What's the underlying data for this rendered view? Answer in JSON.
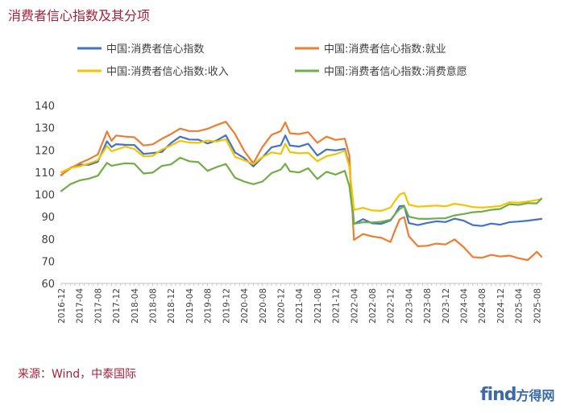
{
  "chart_data": {
    "type": "line",
    "title": "消费者信心指数及其分项",
    "source": "来源：Wind，中泰国际",
    "watermark": {
      "brand": "find",
      "rest": "方得网"
    },
    "ylim": [
      60,
      140
    ],
    "yticks": [
      60,
      70,
      80,
      90,
      100,
      110,
      120,
      130,
      140
    ],
    "grid": false,
    "legend_position": "top",
    "x_start": "2016-12",
    "x_end": "2025-09",
    "x_tick_labels": [
      "2016-12",
      "2017-04",
      "2017-08",
      "2017-12",
      "2018-04",
      "2018-08",
      "2018-12",
      "2019-04",
      "2019-08",
      "2019-12",
      "2020-04",
      "2020-08",
      "2020-12",
      "2021-04",
      "2021-08",
      "2021-12",
      "2022-04",
      "2022-08",
      "2022-12",
      "2023-04",
      "2023-08",
      "2023-12",
      "2024-04",
      "2024-08",
      "2024-12",
      "2025-04",
      "2025-08"
    ],
    "series": [
      {
        "name": "中国:消费者信心指数",
        "color": "#4472C4",
        "points": [
          [
            "2016-12",
            108.6
          ],
          [
            "2017-02",
            112
          ],
          [
            "2017-04",
            113.4
          ],
          [
            "2017-06",
            113.3
          ],
          [
            "2017-08",
            114.7
          ],
          [
            "2017-10",
            123.9
          ],
          [
            "2017-11",
            121.3
          ],
          [
            "2017-12",
            122.6
          ],
          [
            "2018-02",
            122.3
          ],
          [
            "2018-04",
            122.2
          ],
          [
            "2018-06",
            118.2
          ],
          [
            "2018-08",
            118.6
          ],
          [
            "2018-10",
            119.1
          ],
          [
            "2018-12",
            123.1
          ],
          [
            "2019-02",
            126
          ],
          [
            "2019-04",
            124.7
          ],
          [
            "2019-06",
            124.6
          ],
          [
            "2019-08",
            122.9
          ],
          [
            "2019-10",
            124.3
          ],
          [
            "2019-12",
            126.6
          ],
          [
            "2020-02",
            118.9
          ],
          [
            "2020-04",
            116.4
          ],
          [
            "2020-06",
            112.6
          ],
          [
            "2020-08",
            116.7
          ],
          [
            "2020-10",
            121.2
          ],
          [
            "2020-12",
            122.1
          ],
          [
            "2021-01",
            126.5
          ],
          [
            "2021-02",
            122
          ],
          [
            "2021-04",
            121.5
          ],
          [
            "2021-06",
            122.8
          ],
          [
            "2021-08",
            117.5
          ],
          [
            "2021-10",
            120.2
          ],
          [
            "2021-12",
            119.8
          ],
          [
            "2022-02",
            120.5
          ],
          [
            "2022-03",
            113.2
          ],
          [
            "2022-04",
            86.7
          ],
          [
            "2022-06",
            88.9
          ],
          [
            "2022-08",
            87
          ],
          [
            "2022-10",
            86.8
          ],
          [
            "2022-12",
            88.3
          ],
          [
            "2023-01",
            91.2
          ],
          [
            "2023-02",
            94.7
          ],
          [
            "2023-03",
            94.9
          ],
          [
            "2023-04",
            87.1
          ],
          [
            "2023-06",
            86.2
          ],
          [
            "2023-08",
            87.2
          ],
          [
            "2023-10",
            87.9
          ],
          [
            "2023-12",
            87.6
          ],
          [
            "2024-02",
            89.1
          ],
          [
            "2024-04",
            88.2
          ],
          [
            "2024-06",
            86.2
          ],
          [
            "2024-08",
            85.8
          ],
          [
            "2024-10",
            86.9
          ],
          [
            "2024-12",
            86.4
          ],
          [
            "2025-02",
            87.5
          ],
          [
            "2025-04",
            87.8
          ],
          [
            "2025-06",
            88.2
          ],
          [
            "2025-09",
            89
          ]
        ]
      },
      {
        "name": "中国:消费者信心指数:就业",
        "color": "#ED7D31",
        "points": [
          [
            "2016-12",
            108.8
          ],
          [
            "2017-02",
            111.7
          ],
          [
            "2017-04",
            114
          ],
          [
            "2017-06",
            115.8
          ],
          [
            "2017-08",
            118
          ],
          [
            "2017-10",
            128.3
          ],
          [
            "2017-11",
            124.1
          ],
          [
            "2017-12",
            126.5
          ],
          [
            "2018-02",
            126
          ],
          [
            "2018-04",
            125.7
          ],
          [
            "2018-06",
            122
          ],
          [
            "2018-08",
            122.5
          ],
          [
            "2018-10",
            125
          ],
          [
            "2018-12",
            127.1
          ],
          [
            "2019-02",
            129.6
          ],
          [
            "2019-04",
            128.5
          ],
          [
            "2019-06",
            128.5
          ],
          [
            "2019-08",
            129.5
          ],
          [
            "2019-10",
            131.2
          ],
          [
            "2019-12",
            132.7
          ],
          [
            "2020-02",
            127.2
          ],
          [
            "2020-04",
            119.6
          ],
          [
            "2020-06",
            114
          ],
          [
            "2020-08",
            121.4
          ],
          [
            "2020-10",
            126.8
          ],
          [
            "2020-12",
            128.5
          ],
          [
            "2021-01",
            132.4
          ],
          [
            "2021-02",
            127.5
          ],
          [
            "2021-04",
            127.1
          ],
          [
            "2021-06",
            128
          ],
          [
            "2021-08",
            123.2
          ],
          [
            "2021-10",
            126
          ],
          [
            "2021-12",
            124.5
          ],
          [
            "2022-02",
            125.1
          ],
          [
            "2022-03",
            117.5
          ],
          [
            "2022-04",
            79.6
          ],
          [
            "2022-06",
            82.2
          ],
          [
            "2022-08",
            81.1
          ],
          [
            "2022-10",
            80.5
          ],
          [
            "2022-12",
            78.6
          ],
          [
            "2023-01",
            84
          ],
          [
            "2023-02",
            88.8
          ],
          [
            "2023-03",
            89.8
          ],
          [
            "2023-04",
            81.2
          ],
          [
            "2023-06",
            76.7
          ],
          [
            "2023-08",
            76.9
          ],
          [
            "2023-10",
            77.9
          ],
          [
            "2023-12",
            77.5
          ],
          [
            "2024-02",
            79.8
          ],
          [
            "2024-04",
            76.3
          ],
          [
            "2024-06",
            71.8
          ],
          [
            "2024-08",
            71.5
          ],
          [
            "2024-10",
            72.8
          ],
          [
            "2024-12",
            72.1
          ],
          [
            "2025-02",
            72.5
          ],
          [
            "2025-04",
            71.3
          ],
          [
            "2025-06",
            70.5
          ],
          [
            "2025-08",
            74.2
          ],
          [
            "2025-09",
            72
          ]
        ]
      },
      {
        "name": "中国:消费者信心指数:收入",
        "color": "#F2C500",
        "points": [
          [
            "2016-12",
            110
          ],
          [
            "2017-02",
            111.9
          ],
          [
            "2017-04",
            112.6
          ],
          [
            "2017-06",
            113.9
          ],
          [
            "2017-08",
            115.4
          ],
          [
            "2017-10",
            121.8
          ],
          [
            "2017-11",
            119.4
          ],
          [
            "2017-12",
            120.1
          ],
          [
            "2018-02",
            121.5
          ],
          [
            "2018-04",
            120.4
          ],
          [
            "2018-06",
            117.1
          ],
          [
            "2018-08",
            117.3
          ],
          [
            "2018-10",
            120.2
          ],
          [
            "2018-12",
            122
          ],
          [
            "2019-02",
            124.1
          ],
          [
            "2019-04",
            123.3
          ],
          [
            "2019-06",
            123.2
          ],
          [
            "2019-08",
            124.2
          ],
          [
            "2019-10",
            123.8
          ],
          [
            "2019-12",
            124.8
          ],
          [
            "2020-02",
            116.9
          ],
          [
            "2020-04",
            115.4
          ],
          [
            "2020-06",
            113.7
          ],
          [
            "2020-08",
            116.8
          ],
          [
            "2020-10",
            118.9
          ],
          [
            "2020-12",
            118.2
          ],
          [
            "2021-01",
            122.8
          ],
          [
            "2021-02",
            119
          ],
          [
            "2021-04",
            118.5
          ],
          [
            "2021-06",
            118.7
          ],
          [
            "2021-08",
            114.9
          ],
          [
            "2021-10",
            117.2
          ],
          [
            "2021-12",
            118.1
          ],
          [
            "2022-02",
            119.7
          ],
          [
            "2022-03",
            112.4
          ],
          [
            "2022-04",
            93
          ],
          [
            "2022-06",
            94
          ],
          [
            "2022-08",
            92.8
          ],
          [
            "2022-10",
            92.6
          ],
          [
            "2022-12",
            94.1
          ],
          [
            "2023-01",
            97.2
          ],
          [
            "2023-02",
            99.9
          ],
          [
            "2023-03",
            100.8
          ],
          [
            "2023-04",
            95.4
          ],
          [
            "2023-06",
            94.5
          ],
          [
            "2023-08",
            94.7
          ],
          [
            "2023-10",
            95
          ],
          [
            "2023-12",
            94.6
          ],
          [
            "2024-02",
            95.8
          ],
          [
            "2024-04",
            95.2
          ],
          [
            "2024-06",
            94.3
          ],
          [
            "2024-08",
            94.1
          ],
          [
            "2024-10",
            94.4
          ],
          [
            "2024-12",
            94.8
          ],
          [
            "2025-02",
            96.5
          ],
          [
            "2025-04",
            96.3
          ],
          [
            "2025-06",
            96.8
          ],
          [
            "2025-08",
            97.5
          ],
          [
            "2025-09",
            97.9
          ]
        ]
      },
      {
        "name": "中国:消费者信心指数:消费意愿",
        "color": "#70AD47",
        "points": [
          [
            "2016-12",
            101.5
          ],
          [
            "2017-02",
            104.6
          ],
          [
            "2017-04",
            106.3
          ],
          [
            "2017-06",
            107.1
          ],
          [
            "2017-08",
            108.4
          ],
          [
            "2017-10",
            114.2
          ],
          [
            "2017-11",
            112.9
          ],
          [
            "2017-12",
            113.3
          ],
          [
            "2018-02",
            114
          ],
          [
            "2018-04",
            113.8
          ],
          [
            "2018-06",
            109.4
          ],
          [
            "2018-08",
            109.8
          ],
          [
            "2018-10",
            112.8
          ],
          [
            "2018-12",
            113.5
          ],
          [
            "2019-02",
            116.5
          ],
          [
            "2019-04",
            114.9
          ],
          [
            "2019-06",
            114.5
          ],
          [
            "2019-08",
            110.6
          ],
          [
            "2019-10",
            112.3
          ],
          [
            "2019-12",
            113.7
          ],
          [
            "2020-02",
            107.5
          ],
          [
            "2020-04",
            105.8
          ],
          [
            "2020-06",
            104.6
          ],
          [
            "2020-08",
            105.8
          ],
          [
            "2020-10",
            109.6
          ],
          [
            "2020-12",
            111.2
          ],
          [
            "2021-01",
            113.8
          ],
          [
            "2021-02",
            110.4
          ],
          [
            "2021-04",
            109.9
          ],
          [
            "2021-06",
            111.8
          ],
          [
            "2021-08",
            106.9
          ],
          [
            "2021-10",
            110.2
          ],
          [
            "2021-12",
            108.9
          ],
          [
            "2022-02",
            110.6
          ],
          [
            "2022-03",
            103.8
          ],
          [
            "2022-04",
            86.8
          ],
          [
            "2022-06",
            87.5
          ],
          [
            "2022-08",
            87.4
          ],
          [
            "2022-10",
            87.7
          ],
          [
            "2022-12",
            88.6
          ],
          [
            "2023-01",
            91.2
          ],
          [
            "2023-02",
            93.4
          ],
          [
            "2023-03",
            94.7
          ],
          [
            "2023-04",
            90
          ],
          [
            "2023-06",
            89.1
          ],
          [
            "2023-08",
            89
          ],
          [
            "2023-10",
            89.2
          ],
          [
            "2023-12",
            89.3
          ],
          [
            "2024-02",
            90.6
          ],
          [
            "2024-04",
            91.2
          ],
          [
            "2024-06",
            92
          ],
          [
            "2024-08",
            92.3
          ],
          [
            "2024-10",
            93.1
          ],
          [
            "2024-12",
            93.5
          ],
          [
            "2025-02",
            95.6
          ],
          [
            "2025-04",
            95.3
          ],
          [
            "2025-06",
            96.1
          ],
          [
            "2025-08",
            96
          ],
          [
            "2025-09",
            98.1
          ]
        ]
      }
    ]
  }
}
